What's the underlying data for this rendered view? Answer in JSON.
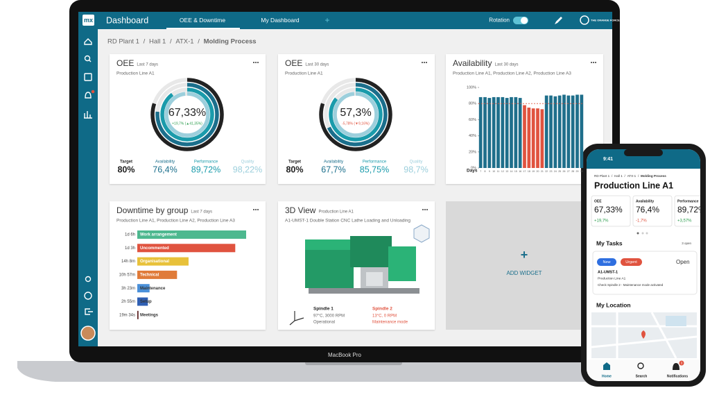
{
  "separator": "/",
  "laptop": {
    "logo": "mx",
    "app_title": "Dashboard",
    "tabs": [
      "OEE & Downtime",
      "My Dashboard"
    ],
    "tab_add": "+",
    "rotation_label": "Rotation",
    "brand": "THE ORANGE FORCE",
    "device_label": "MacBook Pro",
    "breadcrumb": [
      "RD Plant 1",
      "Hall 1",
      "ATX-1",
      "Molding Process"
    ],
    "oee_cards": [
      {
        "title": "OEE",
        "period": "Last 7 days",
        "subtitle": "Production Line A1",
        "center": "67,33%",
        "delta": "+19,7% (▲41,35%)",
        "delta_color": "#2e9e4f",
        "metrics": [
          {
            "label": "Target",
            "value": 80,
            "value_label": "80%",
            "color": "#222222"
          },
          {
            "label": "Availability",
            "value": 76.4,
            "value_label": "76,4%",
            "color": "#1b6f8c"
          },
          {
            "label": "Performance",
            "value": 89.72,
            "value_label": "89,72%",
            "color": "#1a9bab"
          },
          {
            "label": "Quality",
            "value": 98.22,
            "value_label": "98,22%",
            "color": "#9ccfdc"
          }
        ]
      },
      {
        "title": "OEE",
        "period": "Last 30 days",
        "subtitle": "Production Line A1",
        "center": "57,3%",
        "delta": "-5,78% (▼9,16%)",
        "delta_color": "#e0533f",
        "metrics": [
          {
            "label": "Target",
            "value": 80,
            "value_label": "80%",
            "color": "#222222"
          },
          {
            "label": "Availability",
            "value": 67.7,
            "value_label": "67,7%",
            "color": "#1b6f8c"
          },
          {
            "label": "Performance",
            "value": 85.75,
            "value_label": "85,75%",
            "color": "#1a9bab"
          },
          {
            "label": "Quality",
            "value": 98.7,
            "value_label": "98,7%",
            "color": "#9ccfdc"
          }
        ]
      }
    ],
    "availability": {
      "type": "bar",
      "title": "Availability",
      "period": "Last 30 days",
      "subtitle": "Production Line A1, Production Line A2, Production Line A3",
      "x_label": "Days",
      "categories": [
        "7",
        "8",
        "9",
        "10",
        "11",
        "12",
        "13",
        "14",
        "15",
        "16",
        "17",
        "18",
        "19",
        "20",
        "21",
        "22",
        "23",
        "24",
        "25",
        "26",
        "27",
        "28",
        "29",
        "30"
      ],
      "values": [
        88,
        88,
        87,
        88,
        88,
        88,
        87,
        88,
        88,
        87,
        78,
        75,
        74,
        74,
        73,
        90,
        90,
        89,
        90,
        91,
        90,
        90,
        91,
        91
      ],
      "color": "#1f6f8b",
      "below_target_color": "#e0533f",
      "target": 80,
      "ylim": [
        0,
        100
      ],
      "yticks": [
        {
          "value": 0,
          "label": "0%"
        },
        {
          "value": 20,
          "label": "20%"
        },
        {
          "value": 40,
          "label": "40%"
        },
        {
          "value": 60,
          "label": "60%"
        },
        {
          "value": 80,
          "label": "80%"
        },
        {
          "value": 100,
          "label": "100%"
        }
      ]
    },
    "downtime": {
      "type": "bar",
      "title": "Downtime by group",
      "period": "Last 7 days",
      "subtitle": "Production Line A1, Production Line A2, Production Line A3",
      "categories": [
        "Work arrangement",
        "Uncommented",
        "Organisational",
        "Technical",
        "Maintenance",
        "Setup",
        "Meetings"
      ],
      "values": [
        30,
        27,
        14.13,
        10.95,
        3.38,
        2.92,
        0.33
      ],
      "value_labels": [
        "1d 6h",
        "1d 3h",
        "14h 8m",
        "10h 57m",
        "3h 23m",
        "2h 55m",
        "19m 34s"
      ],
      "colors": [
        "#4db88f",
        "#e0533f",
        "#e8c13a",
        "#e07b39",
        "#4a90d9",
        "#2f5fb3",
        "#5a1f1f"
      ],
      "xlim": [
        0,
        30
      ]
    },
    "view3d": {
      "title": "3D View",
      "period": "Production Line A1",
      "subtitle": "A1-UMST-1 Double Station CNC Lathe Loading and Unloading",
      "spindles": [
        {
          "name": "Spindle 1",
          "stats": "97°C, 3000 RPM",
          "status": "Operational",
          "color": "#222222"
        },
        {
          "name": "Spindle 2",
          "stats": "13°C, 0 RPM",
          "status": "Maintenance mode",
          "color": "#e0533f"
        }
      ]
    },
    "add_widget": {
      "icon": "+",
      "label": "ADD WIDGET"
    }
  },
  "phone": {
    "time": "9:41",
    "breadcrumb": [
      "RD Plant 1",
      "Hall 1",
      "ATX-1",
      "Molding Process"
    ],
    "title": "Production Line A1",
    "kpis": [
      {
        "label": "OEE",
        "value": "67,33%",
        "delta": "+19,7%",
        "delta_color": "#2e9e4f"
      },
      {
        "label": "Availability",
        "value": "76,4%",
        "delta": "-1,7%",
        "delta_color": "#e0533f"
      },
      {
        "label": "Performance",
        "value": "89,72%",
        "delta": "+3,57%",
        "delta_color": "#2e9e4f"
      }
    ],
    "tasks_title": "My Tasks",
    "tasks_count": "3 open",
    "task": {
      "tags": [
        "New",
        "Urgent"
      ],
      "tag_colors": [
        "#2f6fe0",
        "#e0533f"
      ],
      "status": "Open",
      "id": "A1-UMST-1",
      "line": "Production Line A1",
      "note": "Check Spindle 2 - Maintenance mode activated"
    },
    "location_title": "My Location",
    "nav": [
      "Home",
      "Search",
      "Notifications"
    ],
    "badge": "3"
  }
}
